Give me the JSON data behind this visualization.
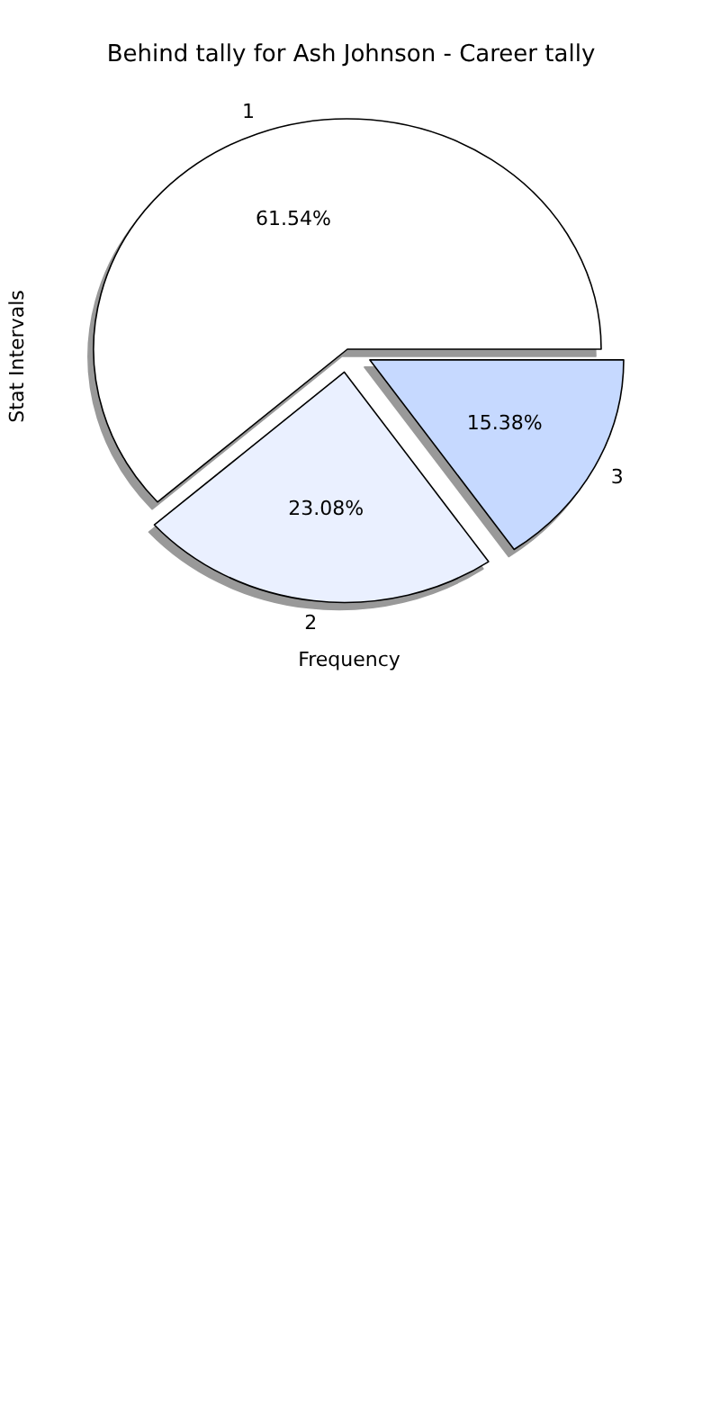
{
  "chart_data": {
    "type": "pie",
    "title": "Behind tally for Ash Johnson - Career tally",
    "xlabel": "Frequency",
    "ylabel": "Stat Intervals",
    "categories": [
      "1",
      "2",
      "3"
    ],
    "values": [
      61.54,
      23.08,
      15.38
    ],
    "value_labels": [
      "61.54%",
      "23.08%",
      "15.38%"
    ],
    "colors": [
      "#ffffff",
      "#eaf0ff",
      "#c6d9ff"
    ]
  }
}
